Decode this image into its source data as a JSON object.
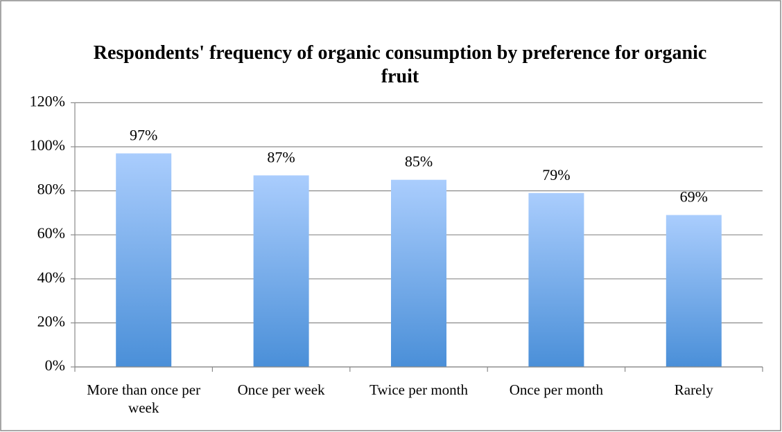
{
  "chart_data": {
    "type": "bar",
    "title": "Respondents' frequency of organic consumption by preference for organic fruit",
    "categories": [
      "More than once per week",
      "Once per week",
      "Twice per month",
      "Once per month",
      "Rarely"
    ],
    "values": [
      97,
      87,
      85,
      79,
      69
    ],
    "value_labels": [
      "97%",
      "87%",
      "85%",
      "79%",
      "69%"
    ],
    "color": "#4a8fd8",
    "ylim": [
      0,
      120
    ],
    "yticks": [
      {
        "value": 0,
        "label": "0%"
      },
      {
        "value": 20,
        "label": "20%"
      },
      {
        "value": 40,
        "label": "40%"
      },
      {
        "value": 60,
        "label": "60%"
      },
      {
        "value": 80,
        "label": "80%"
      },
      {
        "value": 100,
        "label": "100%"
      },
      {
        "value": 120,
        "label": "120%"
      }
    ],
    "grid": true
  }
}
